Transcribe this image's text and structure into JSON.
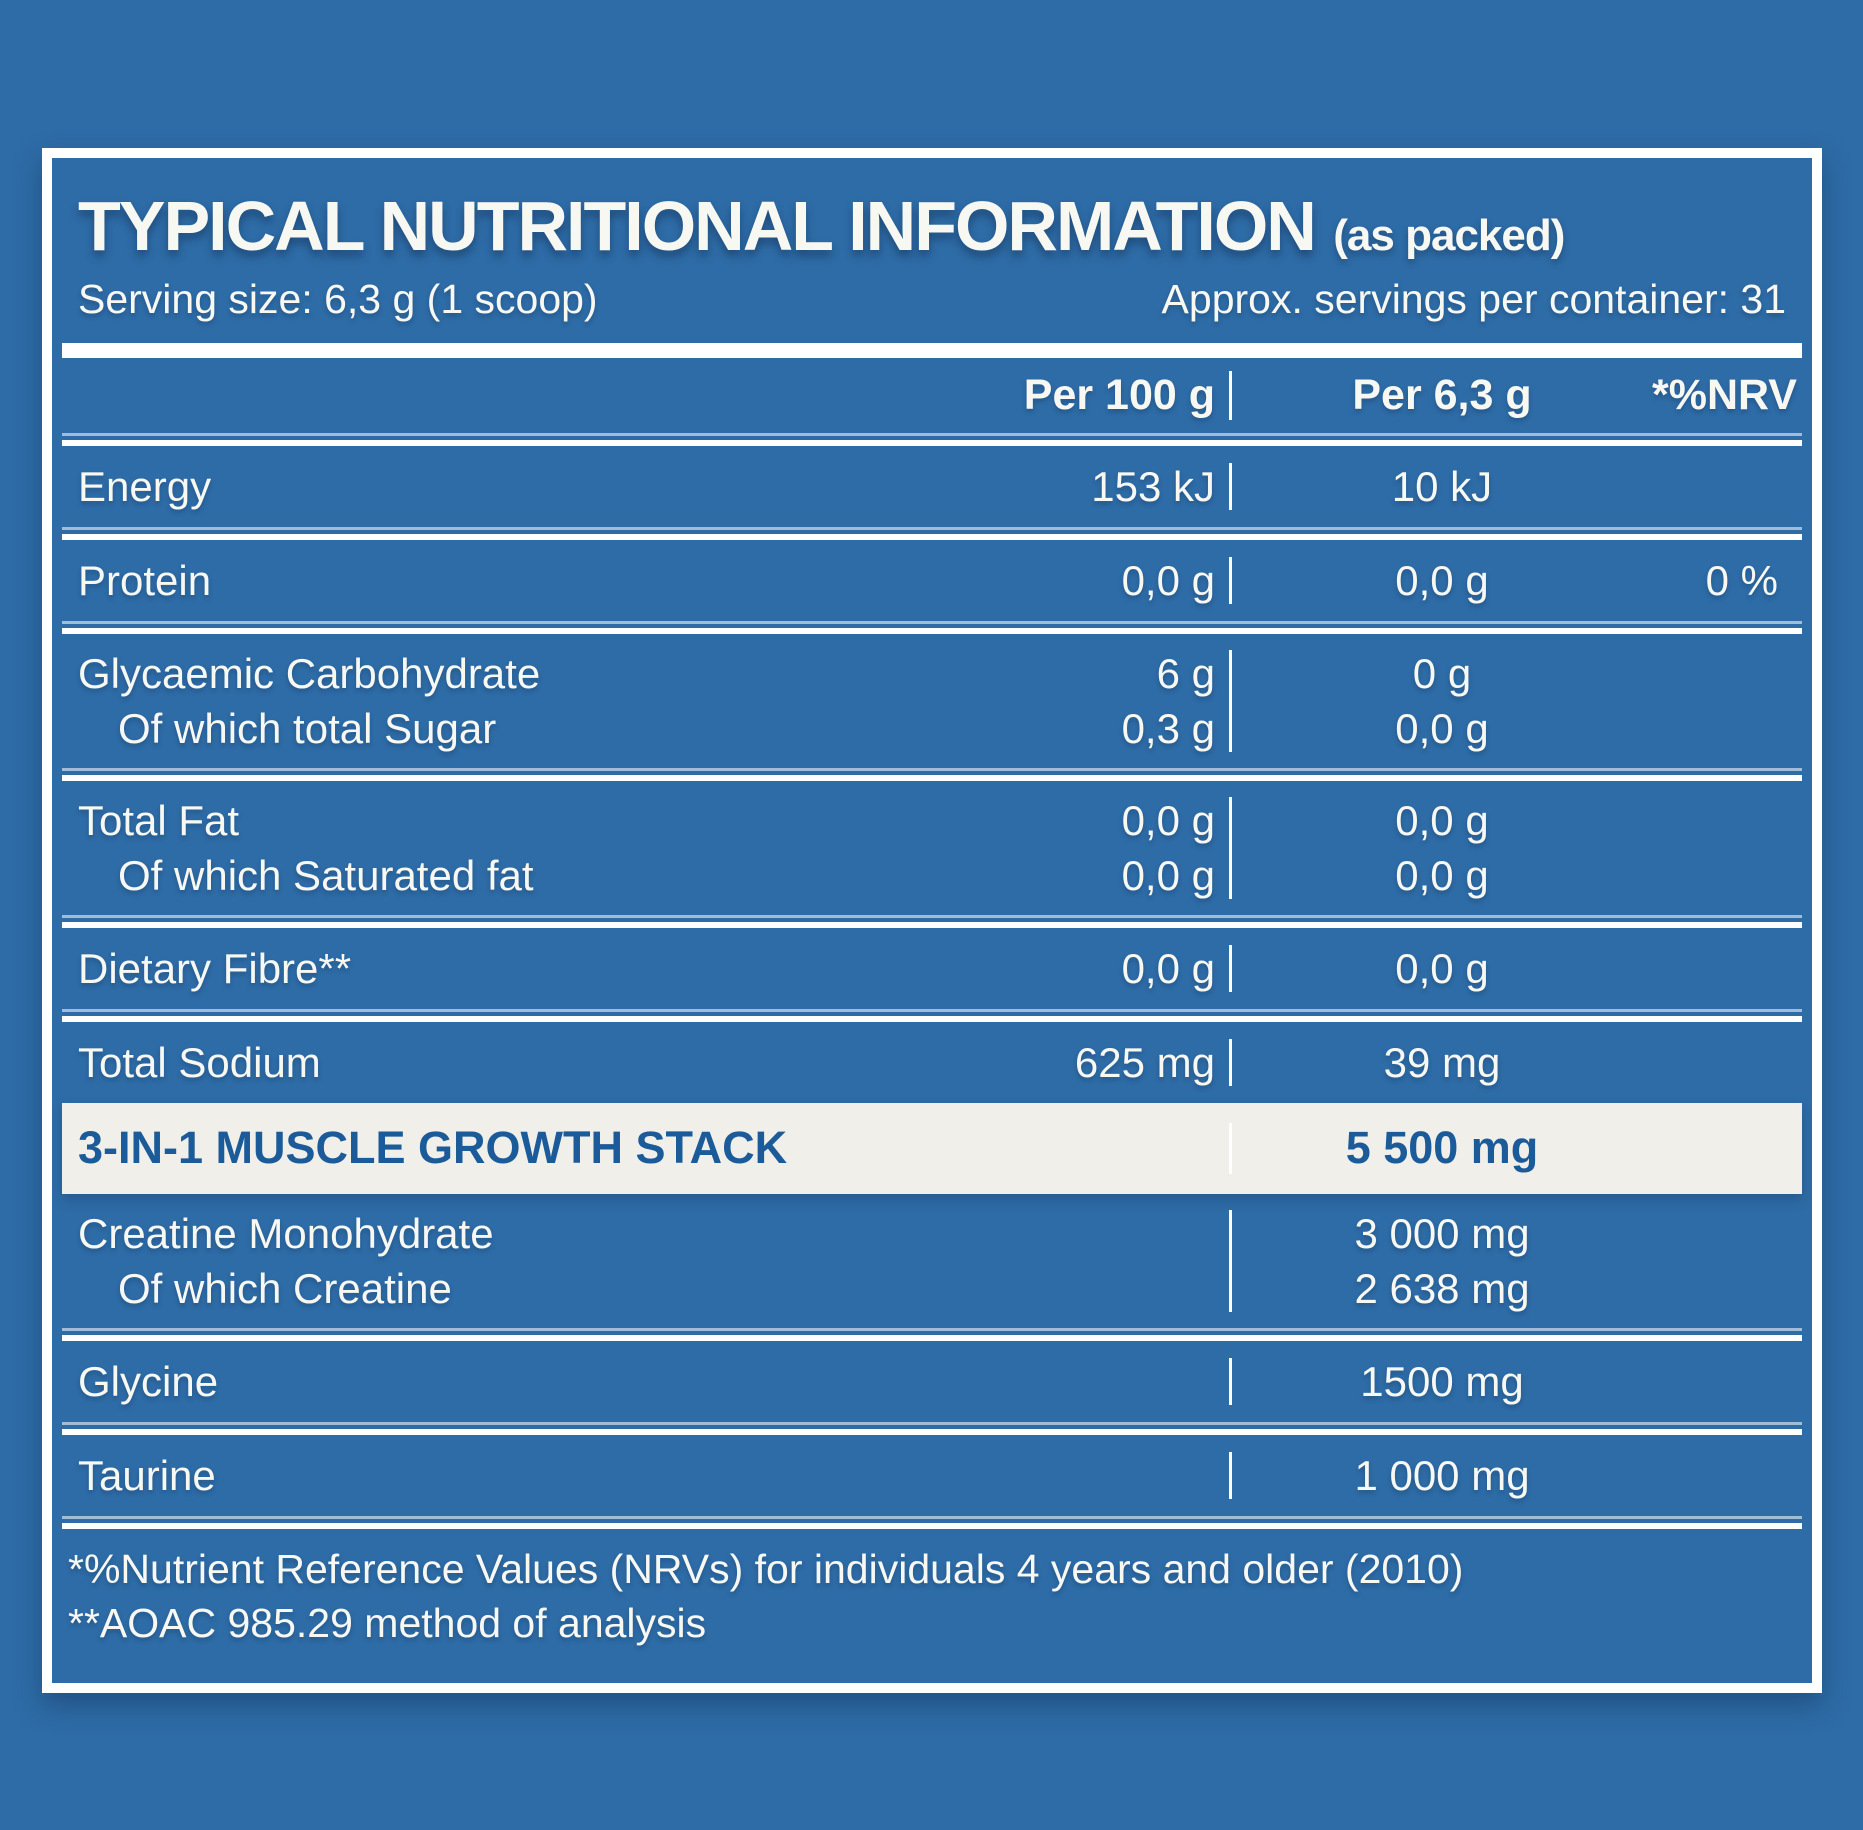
{
  "header": {
    "title": "TYPICAL NUTRITIONAL INFORMATION",
    "title_suffix": "(as packed)",
    "serving_size": "Serving size: 6,3 g (1 scoop)",
    "servings_per_container": "Approx. servings per container: 31"
  },
  "columns": {
    "per100": "Per 100 g",
    "per63": "Per 6,3 g",
    "nrv": "*%NRV"
  },
  "rows": [
    {
      "lines": [
        {
          "label": "Energy",
          "per100": "153 kJ",
          "per63": "10 kJ",
          "nrv": ""
        }
      ]
    },
    {
      "lines": [
        {
          "label": "Protein",
          "per100": "0,0 g",
          "per63": "0,0 g",
          "nrv": "0 %"
        }
      ]
    },
    {
      "lines": [
        {
          "label": "Glycaemic Carbohydrate",
          "per100": "6 g",
          "per63": "0 g",
          "nrv": ""
        },
        {
          "label": "Of which total Sugar",
          "per100": "0,3 g",
          "per63": "0,0 g",
          "nrv": ""
        }
      ]
    },
    {
      "lines": [
        {
          "label": "Total Fat",
          "per100": "0,0 g",
          "per63": "0,0 g",
          "nrv": ""
        },
        {
          "label": "Of which Saturated fat",
          "per100": "0,0 g",
          "per63": "0,0 g",
          "nrv": ""
        }
      ]
    },
    {
      "lines": [
        {
          "label": "Dietary Fibre**",
          "per100": "0,0 g",
          "per63": "0,0 g",
          "nrv": ""
        }
      ]
    },
    {
      "lines": [
        {
          "label": "Total Sodium",
          "per100": "625 mg",
          "per63": "39 mg",
          "nrv": ""
        }
      ]
    }
  ],
  "highlight": {
    "label": "3-IN-1 MUSCLE GROWTH STACK",
    "per63": "5 500 mg"
  },
  "stack_rows": [
    {
      "lines": [
        {
          "label": "Creatine Monohydrate",
          "per63": "3 000 mg"
        },
        {
          "label": "Of which Creatine",
          "per63": "2 638 mg"
        }
      ]
    },
    {
      "lines": [
        {
          "label": "Glycine",
          "per63": "1500 mg"
        }
      ]
    },
    {
      "lines": [
        {
          "label": "Taurine",
          "per63": "1 000 mg"
        }
      ]
    }
  ],
  "footnotes": [
    "*%Nutrient Reference Values (NRVs) for individuals 4 years and older (2010)",
    "**AOAC 985.29 method of analysis"
  ],
  "colors": {
    "background": "#2E6CA7",
    "rule_white": "#FFFFFF",
    "text": "#F8F8F3",
    "highlight_bg": "#F0EFE9",
    "highlight_text": "#1C5B99"
  }
}
